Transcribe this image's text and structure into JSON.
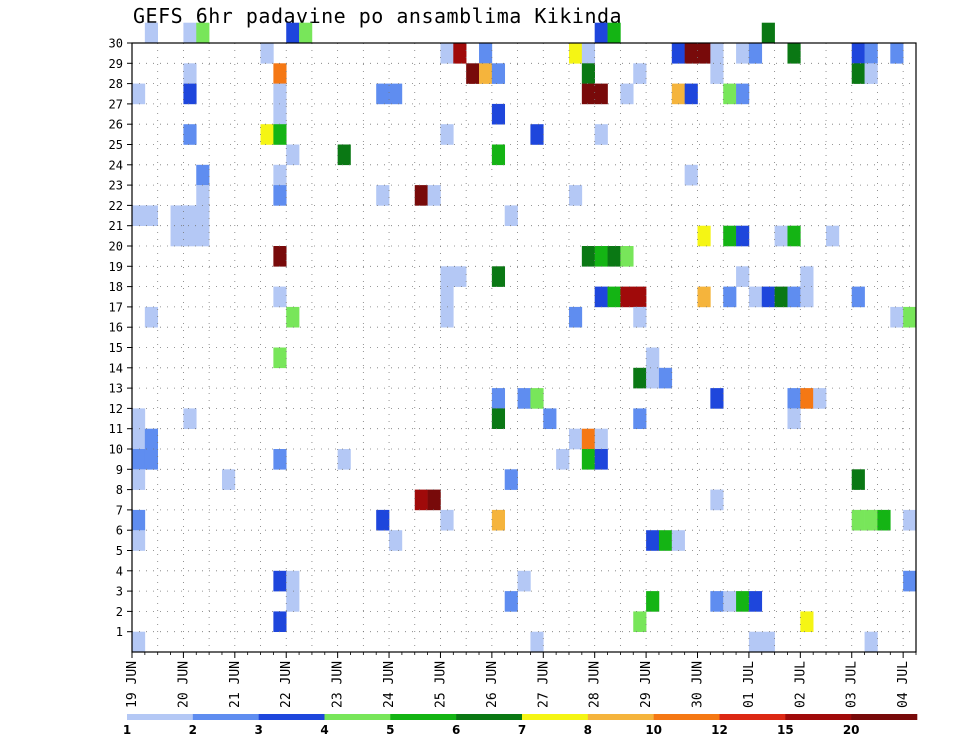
{
  "chart_data": {
    "type": "heatmap",
    "title": "GEFS 6hr padavine po ansamblima Kikinda",
    "xlabel": "",
    "ylabel": "",
    "x_tick_labels": [
      "19 JUN",
      "20 JUN",
      "21 JUN",
      "22 JUN",
      "23 JUN",
      "24 JUN",
      "25 JUN",
      "26 JUN",
      "27 JUN",
      "28 JUN",
      "29 JUN",
      "30 JUN",
      "01 JUL",
      "02 JUL",
      "03 JUL",
      "04 JUL"
    ],
    "y_ticks": [
      1,
      2,
      3,
      4,
      5,
      6,
      7,
      8,
      9,
      10,
      11,
      12,
      13,
      14,
      15,
      16,
      17,
      18,
      19,
      20,
      21,
      22,
      23,
      24,
      25,
      26,
      27,
      28,
      29,
      30
    ],
    "ylim": [
      0,
      30
    ],
    "steps_per_day": 4,
    "n_steps": 61,
    "grid": true,
    "legend_position": "bottom",
    "colorbar": {
      "labels": [
        "1",
        "2",
        "3",
        "4",
        "5",
        "6",
        "7",
        "8",
        "10",
        "12",
        "15",
        "20"
      ],
      "colors": [
        "#b4c8f5",
        "#5f8df0",
        "#1e46dc",
        "#78e65a",
        "#14b414",
        "#0a7814",
        "#f5f514",
        "#f5b43c",
        "#f57814",
        "#dc2814",
        "#a00a0a",
        "#780a0a"
      ]
    },
    "cells": [
      {
        "m": 30,
        "t": 1,
        "c": 1
      },
      {
        "m": 30,
        "t": 4,
        "c": 1
      },
      {
        "m": 30,
        "t": 5,
        "c": 4
      },
      {
        "m": 30,
        "t": 12,
        "c": 3
      },
      {
        "m": 30,
        "t": 13,
        "c": 4
      },
      {
        "m": 30,
        "t": 36,
        "c": 3
      },
      {
        "m": 30,
        "t": 37,
        "c": 5
      },
      {
        "m": 30,
        "t": 49,
        "c": 6
      },
      {
        "m": 29,
        "t": 10,
        "c": 1
      },
      {
        "m": 29,
        "t": 24,
        "c": 1
      },
      {
        "m": 29,
        "t": 25,
        "c": 11
      },
      {
        "m": 29,
        "t": 27,
        "c": 2
      },
      {
        "m": 29,
        "t": 34,
        "c": 7
      },
      {
        "m": 29,
        "t": 35,
        "c": 1
      },
      {
        "m": 29,
        "t": 42,
        "c": 3
      },
      {
        "m": 29,
        "t": 43,
        "c": 12
      },
      {
        "m": 29,
        "t": 44,
        "c": 12
      },
      {
        "m": 29,
        "t": 45,
        "c": 1
      },
      {
        "m": 29,
        "t": 47,
        "c": 1
      },
      {
        "m": 29,
        "t": 48,
        "c": 2
      },
      {
        "m": 29,
        "t": 51,
        "c": 6
      },
      {
        "m": 29,
        "t": 56,
        "c": 3
      },
      {
        "m": 29,
        "t": 57,
        "c": 2
      },
      {
        "m": 29,
        "t": 59,
        "c": 2
      },
      {
        "m": 28,
        "t": 4,
        "c": 1
      },
      {
        "m": 28,
        "t": 11,
        "c": 9
      },
      {
        "m": 28,
        "t": 26,
        "c": 12
      },
      {
        "m": 28,
        "t": 27,
        "c": 8
      },
      {
        "m": 28,
        "t": 28,
        "c": 2
      },
      {
        "m": 28,
        "t": 35,
        "c": 6
      },
      {
        "m": 28,
        "t": 39,
        "c": 1
      },
      {
        "m": 28,
        "t": 45,
        "c": 1
      },
      {
        "m": 28,
        "t": 56,
        "c": 6
      },
      {
        "m": 28,
        "t": 57,
        "c": 1
      },
      {
        "m": 27,
        "t": 0,
        "c": 1
      },
      {
        "m": 27,
        "t": 4,
        "c": 3
      },
      {
        "m": 27,
        "t": 11,
        "c": 1
      },
      {
        "m": 27,
        "t": 19,
        "c": 2
      },
      {
        "m": 27,
        "t": 20,
        "c": 2
      },
      {
        "m": 27,
        "t": 35,
        "c": 12
      },
      {
        "m": 27,
        "t": 36,
        "c": 12
      },
      {
        "m": 27,
        "t": 38,
        "c": 1
      },
      {
        "m": 27,
        "t": 42,
        "c": 8
      },
      {
        "m": 27,
        "t": 43,
        "c": 3
      },
      {
        "m": 27,
        "t": 46,
        "c": 4
      },
      {
        "m": 27,
        "t": 47,
        "c": 2
      },
      {
        "m": 26,
        "t": 11,
        "c": 1
      },
      {
        "m": 26,
        "t": 28,
        "c": 3
      },
      {
        "m": 25,
        "t": 4,
        "c": 2
      },
      {
        "m": 25,
        "t": 10,
        "c": 7
      },
      {
        "m": 25,
        "t": 11,
        "c": 5
      },
      {
        "m": 25,
        "t": 24,
        "c": 1
      },
      {
        "m": 25,
        "t": 31,
        "c": 3
      },
      {
        "m": 25,
        "t": 36,
        "c": 1
      },
      {
        "m": 24,
        "t": 12,
        "c": 1
      },
      {
        "m": 24,
        "t": 16,
        "c": 6
      },
      {
        "m": 24,
        "t": 28,
        "c": 5
      },
      {
        "m": 23,
        "t": 5,
        "c": 2
      },
      {
        "m": 23,
        "t": 11,
        "c": 1
      },
      {
        "m": 23,
        "t": 43,
        "c": 1
      },
      {
        "m": 22,
        "t": 5,
        "c": 1
      },
      {
        "m": 22,
        "t": 11,
        "c": 2
      },
      {
        "m": 22,
        "t": 19,
        "c": 1
      },
      {
        "m": 22,
        "t": 22,
        "c": 12
      },
      {
        "m": 22,
        "t": 23,
        "c": 1
      },
      {
        "m": 22,
        "t": 34,
        "c": 1
      },
      {
        "m": 21,
        "t": 0,
        "c": 1
      },
      {
        "m": 21,
        "t": 1,
        "c": 1
      },
      {
        "m": 21,
        "t": 3,
        "c": 1
      },
      {
        "m": 21,
        "t": 4,
        "c": 1
      },
      {
        "m": 21,
        "t": 5,
        "c": 1
      },
      {
        "m": 21,
        "t": 29,
        "c": 1
      },
      {
        "m": 20,
        "t": 3,
        "c": 1
      },
      {
        "m": 20,
        "t": 4,
        "c": 1
      },
      {
        "m": 20,
        "t": 5,
        "c": 1
      },
      {
        "m": 20,
        "t": 44,
        "c": 7
      },
      {
        "m": 20,
        "t": 46,
        "c": 5
      },
      {
        "m": 20,
        "t": 47,
        "c": 3
      },
      {
        "m": 20,
        "t": 50,
        "c": 1
      },
      {
        "m": 20,
        "t": 51,
        "c": 5
      },
      {
        "m": 20,
        "t": 54,
        "c": 1
      },
      {
        "m": 19,
        "t": 11,
        "c": 12
      },
      {
        "m": 19,
        "t": 35,
        "c": 6
      },
      {
        "m": 19,
        "t": 36,
        "c": 5
      },
      {
        "m": 19,
        "t": 37,
        "c": 6
      },
      {
        "m": 19,
        "t": 38,
        "c": 4
      },
      {
        "m": 18,
        "t": 24,
        "c": 1
      },
      {
        "m": 18,
        "t": 25,
        "c": 1
      },
      {
        "m": 18,
        "t": 28,
        "c": 6
      },
      {
        "m": 18,
        "t": 47,
        "c": 1
      },
      {
        "m": 18,
        "t": 52,
        "c": 1
      },
      {
        "m": 17,
        "t": 11,
        "c": 1
      },
      {
        "m": 17,
        "t": 24,
        "c": 1
      },
      {
        "m": 17,
        "t": 36,
        "c": 3
      },
      {
        "m": 17,
        "t": 37,
        "c": 5
      },
      {
        "m": 17,
        "t": 38,
        "c": 11
      },
      {
        "m": 17,
        "t": 39,
        "c": 11
      },
      {
        "m": 17,
        "t": 44,
        "c": 8
      },
      {
        "m": 17,
        "t": 46,
        "c": 2
      },
      {
        "m": 17,
        "t": 48,
        "c": 1
      },
      {
        "m": 17,
        "t": 49,
        "c": 3
      },
      {
        "m": 17,
        "t": 50,
        "c": 6
      },
      {
        "m": 17,
        "t": 51,
        "c": 2
      },
      {
        "m": 17,
        "t": 52,
        "c": 1
      },
      {
        "m": 17,
        "t": 56,
        "c": 2
      },
      {
        "m": 16,
        "t": 1,
        "c": 1
      },
      {
        "m": 16,
        "t": 12,
        "c": 4
      },
      {
        "m": 16,
        "t": 24,
        "c": 1
      },
      {
        "m": 16,
        "t": 34,
        "c": 2
      },
      {
        "m": 16,
        "t": 39,
        "c": 1
      },
      {
        "m": 16,
        "t": 59,
        "c": 1
      },
      {
        "m": 16,
        "t": 60,
        "c": 4
      },
      {
        "m": 14,
        "t": 11,
        "c": 4
      },
      {
        "m": 14,
        "t": 40,
        "c": 1
      },
      {
        "m": 13,
        "t": 39,
        "c": 6
      },
      {
        "m": 13,
        "t": 40,
        "c": 1
      },
      {
        "m": 13,
        "t": 41,
        "c": 2
      },
      {
        "m": 12,
        "t": 28,
        "c": 2
      },
      {
        "m": 12,
        "t": 30,
        "c": 2
      },
      {
        "m": 12,
        "t": 31,
        "c": 4
      },
      {
        "m": 12,
        "t": 45,
        "c": 3
      },
      {
        "m": 12,
        "t": 51,
        "c": 2
      },
      {
        "m": 12,
        "t": 52,
        "c": 9
      },
      {
        "m": 12,
        "t": 53,
        "c": 1
      },
      {
        "m": 11,
        "t": 0,
        "c": 1
      },
      {
        "m": 11,
        "t": 4,
        "c": 1
      },
      {
        "m": 11,
        "t": 28,
        "c": 6
      },
      {
        "m": 11,
        "t": 32,
        "c": 2
      },
      {
        "m": 11,
        "t": 39,
        "c": 2
      },
      {
        "m": 11,
        "t": 51,
        "c": 1
      },
      {
        "m": 10,
        "t": 0,
        "c": 1
      },
      {
        "m": 10,
        "t": 1,
        "c": 2
      },
      {
        "m": 10,
        "t": 34,
        "c": 1
      },
      {
        "m": 10,
        "t": 35,
        "c": 9
      },
      {
        "m": 10,
        "t": 36,
        "c": 1
      },
      {
        "m": 9,
        "t": 0,
        "c": 2
      },
      {
        "m": 9,
        "t": 1,
        "c": 2
      },
      {
        "m": 9,
        "t": 11,
        "c": 2
      },
      {
        "m": 9,
        "t": 16,
        "c": 1
      },
      {
        "m": 9,
        "t": 33,
        "c": 1
      },
      {
        "m": 9,
        "t": 35,
        "c": 5
      },
      {
        "m": 9,
        "t": 36,
        "c": 3
      },
      {
        "m": 8,
        "t": 0,
        "c": 1
      },
      {
        "m": 8,
        "t": 7,
        "c": 1
      },
      {
        "m": 8,
        "t": 29,
        "c": 2
      },
      {
        "m": 8,
        "t": 56,
        "c": 6
      },
      {
        "m": 7,
        "t": 22,
        "c": 11
      },
      {
        "m": 7,
        "t": 23,
        "c": 12
      },
      {
        "m": 7,
        "t": 45,
        "c": 1
      },
      {
        "m": 6,
        "t": 0,
        "c": 2
      },
      {
        "m": 6,
        "t": 19,
        "c": 3
      },
      {
        "m": 6,
        "t": 24,
        "c": 1
      },
      {
        "m": 6,
        "t": 28,
        "c": 8
      },
      {
        "m": 6,
        "t": 56,
        "c": 4
      },
      {
        "m": 6,
        "t": 57,
        "c": 4
      },
      {
        "m": 6,
        "t": 58,
        "c": 5
      },
      {
        "m": 6,
        "t": 60,
        "c": 1
      },
      {
        "m": 5,
        "t": 0,
        "c": 1
      },
      {
        "m": 5,
        "t": 20,
        "c": 1
      },
      {
        "m": 5,
        "t": 40,
        "c": 3
      },
      {
        "m": 5,
        "t": 41,
        "c": 5
      },
      {
        "m": 5,
        "t": 42,
        "c": 1
      },
      {
        "m": 3,
        "t": 11,
        "c": 3
      },
      {
        "m": 3,
        "t": 12,
        "c": 1
      },
      {
        "m": 3,
        "t": 30,
        "c": 1
      },
      {
        "m": 3,
        "t": 60,
        "c": 2
      },
      {
        "m": 2,
        "t": 12,
        "c": 1
      },
      {
        "m": 2,
        "t": 29,
        "c": 2
      },
      {
        "m": 2,
        "t": 40,
        "c": 5
      },
      {
        "m": 2,
        "t": 45,
        "c": 2
      },
      {
        "m": 2,
        "t": 46,
        "c": 1
      },
      {
        "m": 2,
        "t": 47,
        "c": 5
      },
      {
        "m": 2,
        "t": 48,
        "c": 3
      },
      {
        "m": 1,
        "t": 11,
        "c": 3
      },
      {
        "m": 1,
        "t": 39,
        "c": 4
      },
      {
        "m": 1,
        "t": 52,
        "c": 7
      },
      {
        "m": 0,
        "t": 0,
        "c": 1
      },
      {
        "m": 0,
        "t": 31,
        "c": 1
      },
      {
        "m": 0,
        "t": 48,
        "c": 1
      },
      {
        "m": 0,
        "t": 49,
        "c": 1
      },
      {
        "m": 0,
        "t": 57,
        "c": 1
      }
    ]
  }
}
